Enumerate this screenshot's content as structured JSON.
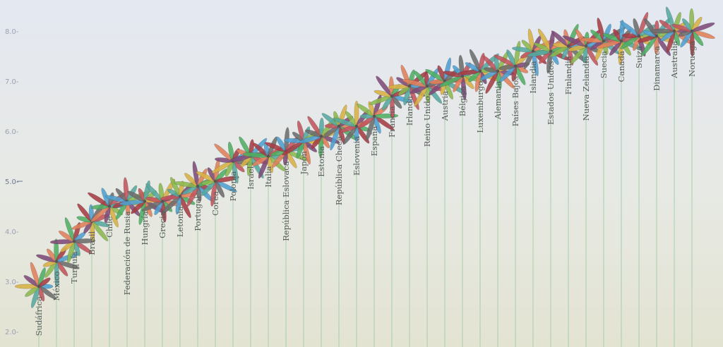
{
  "chart_data": {
    "type": "scatter",
    "title": "",
    "xlabel": "",
    "ylabel": "",
    "ylim": [
      2.0,
      8.6
    ],
    "y_ticks": [
      "2.0-",
      "3.0-",
      "4.0-",
      "5.0-",
      "6.0-",
      "7.0-",
      "8.0-"
    ],
    "countries": [
      {
        "name": "Sudáfrica",
        "value": 2.9
      },
      {
        "name": "México",
        "value": 3.4
      },
      {
        "name": "Turquía",
        "value": 3.8
      },
      {
        "name": "Brasil",
        "value": 4.2
      },
      {
        "name": "Chile",
        "value": 4.5
      },
      {
        "name": "Federación de Rusia",
        "value": 4.6
      },
      {
        "name": "Hungría",
        "value": 4.6
      },
      {
        "name": "Grecia",
        "value": 4.6
      },
      {
        "name": "Letonia",
        "value": 4.7
      },
      {
        "name": "Portugal",
        "value": 4.9
      },
      {
        "name": "Corea",
        "value": 5.0
      },
      {
        "name": "Polonia",
        "value": 5.4
      },
      {
        "name": "Israel",
        "value": 5.5
      },
      {
        "name": "Italia",
        "value": 5.5
      },
      {
        "name": "República Eslovaca",
        "value": 5.6
      },
      {
        "name": "Japón",
        "value": 5.8
      },
      {
        "name": "Estonia",
        "value": 5.9
      },
      {
        "name": "República Checa",
        "value": 6.1
      },
      {
        "name": "Eslovenia",
        "value": 6.1
      },
      {
        "name": "España",
        "value": 6.3
      },
      {
        "name": "Francia",
        "value": 6.7
      },
      {
        "name": "Irlanda",
        "value": 6.9
      },
      {
        "name": "Reino Unido",
        "value": 6.9
      },
      {
        "name": "Austria",
        "value": 7.0
      },
      {
        "name": "Bélgica",
        "value": 7.1
      },
      {
        "name": "Luxemburgo",
        "value": 7.2
      },
      {
        "name": "Alemania",
        "value": 7.2
      },
      {
        "name": "Países Bajos",
        "value": 7.3
      },
      {
        "name": "Islandia",
        "value": 7.6
      },
      {
        "name": "Estados Unidos",
        "value": 7.6
      },
      {
        "name": "Finlandia",
        "value": 7.7
      },
      {
        "name": "Nueva Zelandia",
        "value": 7.7
      },
      {
        "name": "Suecia",
        "value": 7.8
      },
      {
        "name": "Canadá",
        "value": 7.8
      },
      {
        "name": "Suiza",
        "value": 7.9
      },
      {
        "name": "Dinamarca",
        "value": 7.9
      },
      {
        "name": "Australia",
        "value": 8.0
      },
      {
        "name": "Noruega",
        "value": 8.0
      }
    ],
    "petal_colors": [
      "#4f9fd0",
      "#6c6c6c",
      "#c0545c",
      "#55a8a0",
      "#8ab84d",
      "#d8b143",
      "#7e4a79",
      "#e0805a",
      "#4fae63",
      "#a63c44"
    ]
  }
}
